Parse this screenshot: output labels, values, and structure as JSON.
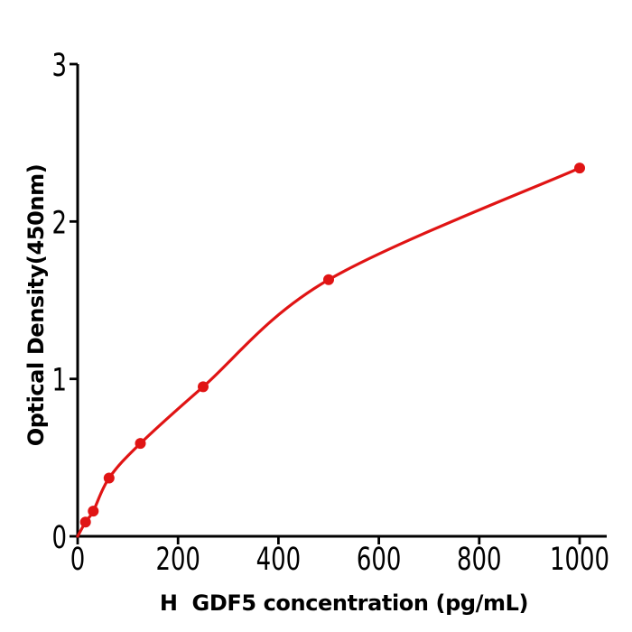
{
  "chart_data": {
    "type": "scatter",
    "title": "",
    "xlabel": "H  GDF5 concentration (pg/mL)",
    "ylabel": "Optical Density(450nm)",
    "x": [
      15.6,
      31.2,
      62.5,
      125,
      250,
      500,
      1000
    ],
    "y": [
      0.09,
      0.16,
      0.37,
      0.59,
      0.95,
      1.63,
      2.34
    ],
    "fit_curve": {
      "style": "smooth",
      "through_origin": true,
      "origin": {
        "x": 0,
        "y": 0
      }
    },
    "xticks": [
      "0",
      "200",
      "400",
      "600",
      "800",
      "1000"
    ],
    "yticks": [
      "0",
      "1",
      "2",
      "3"
    ],
    "xlim": [
      0,
      1050
    ],
    "ylim": [
      0,
      3
    ],
    "grid": false,
    "legend": false,
    "colors": {
      "curve": "#e01414",
      "marker": "#e01414",
      "axis": "#000000",
      "text": "#000000",
      "background": "#ffffff"
    }
  }
}
